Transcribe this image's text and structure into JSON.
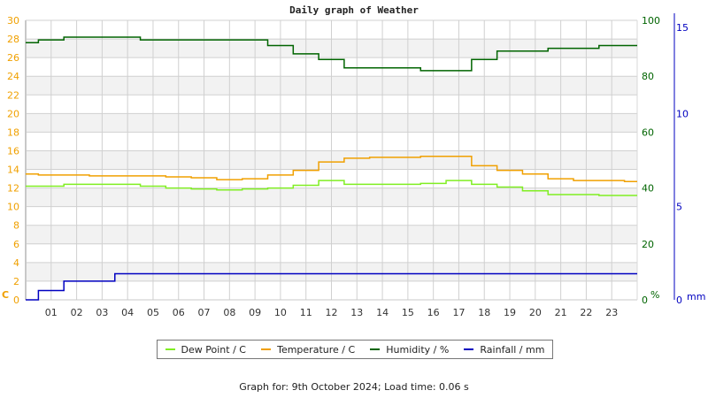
{
  "title": "Daily graph of Weather",
  "footer": "Graph for: 9th October 2024; Load time: 0.06 s",
  "colors": {
    "dew_point": "#80ee22",
    "temperature": "#f0a000",
    "humidity": "#006400",
    "rainfall": "#0000c0",
    "left_axis": "#f0a000",
    "humidity_axis": "#006400",
    "rain_axis": "#0000c0",
    "grid": "#d0d0d0",
    "band": "#f2f2f2"
  },
  "axes": {
    "left_unit": "C",
    "humidity_unit": "%",
    "rain_unit": "mm"
  },
  "legend": [
    {
      "label": "Dew Point / C",
      "color": "#80ee22"
    },
    {
      "label": "Temperature / C",
      "color": "#f0a000"
    },
    {
      "label": "Humidity / %",
      "color": "#006400"
    },
    {
      "label": "Rainfall / mm",
      "color": "#0000c0"
    }
  ],
  "chart_data": {
    "type": "line",
    "title": "Daily graph of Weather",
    "xlabel": "",
    "x_ticks": [
      "01",
      "02",
      "03",
      "04",
      "05",
      "06",
      "07",
      "08",
      "09",
      "10",
      "11",
      "12",
      "13",
      "14",
      "15",
      "16",
      "17",
      "18",
      "19",
      "20",
      "21",
      "22",
      "23"
    ],
    "x_range": [
      0,
      24
    ],
    "y_axes": [
      {
        "name": "Temperature / Dew Point",
        "unit": "C",
        "range": [
          0,
          30
        ],
        "ticks": [
          0,
          2,
          4,
          6,
          8,
          10,
          12,
          14,
          16,
          18,
          20,
          22,
          24,
          26,
          28,
          30
        ]
      },
      {
        "name": "Humidity",
        "unit": "%",
        "range": [
          0,
          100
        ],
        "ticks": [
          0,
          20,
          40,
          60,
          80,
          100
        ]
      },
      {
        "name": "Rainfall",
        "unit": "mm",
        "range": [
          0,
          15
        ],
        "ticks": [
          0,
          5,
          10,
          15
        ]
      }
    ],
    "grid": true,
    "legend_position": "bottom",
    "x": [
      0,
      1,
      2,
      3,
      4,
      5,
      6,
      7,
      8,
      9,
      10,
      11,
      12,
      13,
      14,
      15,
      16,
      17,
      18,
      19,
      20,
      21,
      22,
      23,
      24
    ],
    "series": [
      {
        "name": "Dew Point / C",
        "axis": "C",
        "values": [
          12.2,
          12.2,
          12.4,
          12.4,
          12.4,
          12.2,
          12.0,
          11.9,
          11.8,
          11.9,
          12.0,
          12.3,
          12.8,
          12.4,
          12.4,
          12.4,
          12.5,
          12.8,
          12.4,
          12.1,
          11.7,
          11.3,
          11.3,
          11.2,
          11.2
        ]
      },
      {
        "name": "Temperature / C",
        "axis": "C",
        "values": [
          13.5,
          13.4,
          13.4,
          13.3,
          13.3,
          13.3,
          13.2,
          13.1,
          12.9,
          13.0,
          13.4,
          13.9,
          14.8,
          15.2,
          15.3,
          15.3,
          15.4,
          15.4,
          14.4,
          13.9,
          13.5,
          13.0,
          12.8,
          12.8,
          12.7
        ]
      },
      {
        "name": "Humidity / %",
        "axis": "%",
        "values": [
          92,
          93,
          94,
          94,
          94,
          93,
          93,
          93,
          93,
          93,
          91,
          88,
          86,
          83,
          83,
          83,
          82,
          82,
          86,
          89,
          89,
          90,
          90,
          91,
          91
        ]
      },
      {
        "name": "Rainfall / mm",
        "axis": "mm",
        "values": [
          0,
          0.5,
          1.0,
          1.0,
          1.4,
          1.4,
          1.4,
          1.4,
          1.4,
          1.4,
          1.4,
          1.4,
          1.4,
          1.4,
          1.4,
          1.4,
          1.4,
          1.4,
          1.4,
          1.4,
          1.4,
          1.4,
          1.4,
          1.4,
          1.4
        ]
      }
    ]
  }
}
